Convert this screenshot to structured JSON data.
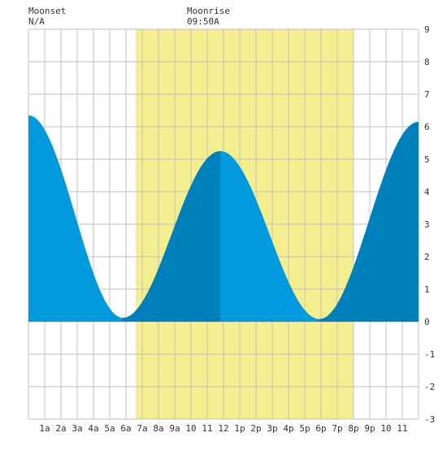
{
  "header": {
    "moonset_label": "Moonset",
    "moonset_time": "N/A",
    "moonrise_label": "Moonrise",
    "moonrise_time": "09:50A"
  },
  "chart_data": {
    "type": "area",
    "title": "",
    "xlabel": "",
    "ylabel": "",
    "xlim": [
      0,
      24
    ],
    "ylim": [
      -3,
      9
    ],
    "x_tick_labels": [
      "1a",
      "2a",
      "3a",
      "4a",
      "5a",
      "6a",
      "7a",
      "8a",
      "9a",
      "10",
      "11",
      "12",
      "1p",
      "2p",
      "3p",
      "4p",
      "5p",
      "6p",
      "7p",
      "8p",
      "9p",
      "10",
      "11"
    ],
    "y_tick_labels": [
      "-3",
      "-2",
      "-1",
      "0",
      "1",
      "2",
      "3",
      "4",
      "5",
      "6",
      "7",
      "8",
      "9"
    ],
    "grid": true,
    "daylight_hours": [
      6.6,
      20.0
    ],
    "tide_extremes": [
      {
        "hour": 0.0,
        "height": 6.35
      },
      {
        "hour": 5.8,
        "height": 0.12
      },
      {
        "hour": 11.8,
        "height": 5.25
      },
      {
        "hour": 17.9,
        "height": 0.08
      },
      {
        "hour": 24.0,
        "height": 6.15
      }
    ],
    "colors": {
      "falling": "#0099dd",
      "rising": "#0080bb",
      "daylight": "#f3ef8f",
      "grid": "#c0c0c0",
      "background": "#ffffff"
    }
  }
}
